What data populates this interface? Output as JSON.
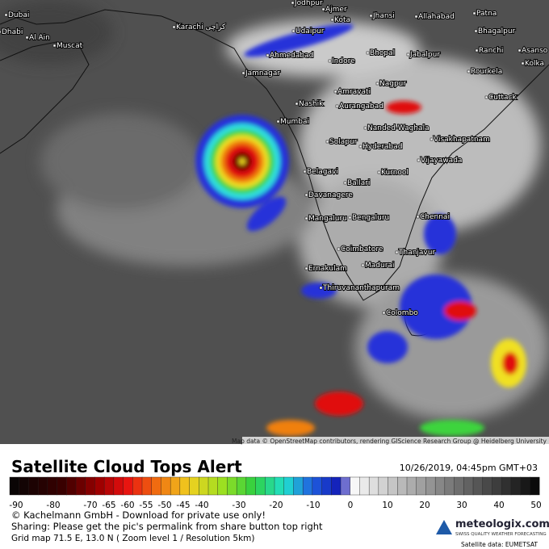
{
  "map": {
    "cities": [
      "Dubai",
      "Dhabi",
      "Al Ain",
      "Muscat",
      "Karachi کراچی",
      "Jodhpur",
      "Ajmer",
      "Kota",
      "Jhansi",
      "Allahabad",
      "Patna",
      "Udaipur",
      "Bhagalpur",
      "Ahmedabad",
      "Bhopal",
      "Jabalpur",
      "Ranchi",
      "Asanso",
      "Kolka",
      "Indore",
      "Jamnagar",
      "Rourkela",
      "Nagpur",
      "Amravati",
      "Cuttack",
      "Nashik",
      "Aurangabad",
      "Mumbai",
      "Nanded-Waghala",
      "Visakhapatnam",
      "Solapur",
      "Hyderabad",
      "Vijayawada",
      "Belagavi",
      "Kurnool",
      "Ballari",
      "Davanagere",
      "Mangaluru",
      "Bengaluru",
      "Chennai",
      "Coimbatore",
      "Thanjavur",
      "Ernakulam",
      "Madurai",
      "Thiruvananthapuram",
      "Colombo"
    ],
    "attribution": "Map data © OpenStreetMap contributors, rendering GIScience Research Group @ Heidelberg University"
  },
  "footer": {
    "title": "Satellite Cloud Tops Alert",
    "timestamp": "10/26/2019, 04:45pm GMT+03",
    "scale_ticks": [
      -90,
      -80,
      -70,
      -65,
      -60,
      -55,
      -50,
      -45,
      -40,
      -30,
      -20,
      -10,
      0,
      10,
      20,
      30,
      40,
      50
    ],
    "copyright": "© Kachelmann GmbH - Download for private use only!",
    "sharing": "Sharing: Please get the pic's permalink from share button top right",
    "grid": "Grid map 71.5 E, 13.0 N ( Zoom level 1 / Resolution 5km)",
    "logo": "meteologix.com",
    "slogan": "SWISS QUALITY WEATHER FORECASTING",
    "source": "Satellite data: EUMETSAT"
  }
}
